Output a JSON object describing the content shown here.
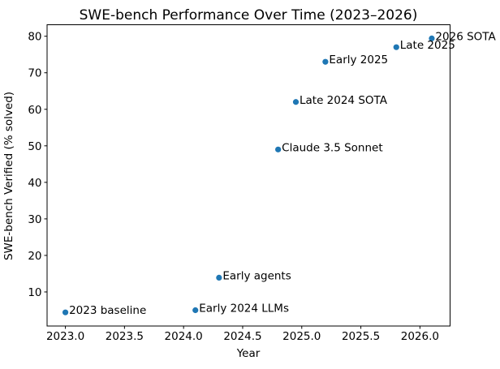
{
  "chart_data": {
    "type": "scatter",
    "title": "SWE-bench Performance Over Time (2023–2026)",
    "xlabel": "Year",
    "ylabel": "SWE-bench Verified (% solved)",
    "xlim": [
      2022.845,
      2026.255
    ],
    "ylim": [
      0.67,
      83.15
    ],
    "xticks": [
      2023.0,
      2023.5,
      2024.0,
      2024.5,
      2025.0,
      2025.5,
      2026.0
    ],
    "xtick_labels": [
      "2023.0",
      "2023.5",
      "2024.0",
      "2024.5",
      "2025.0",
      "2025.5",
      "2026.0"
    ],
    "yticks": [
      10,
      20,
      30,
      40,
      50,
      60,
      70,
      80
    ],
    "ytick_labels": [
      "10",
      "20",
      "30",
      "40",
      "50",
      "60",
      "70",
      "80"
    ],
    "grid": false,
    "legend": "none",
    "marker_color": "#1f77b4",
    "background_color": "#ffffff",
    "text_color": "#000000",
    "points": [
      {
        "x": 2023.0,
        "y": 4.4,
        "label": "2023 baseline"
      },
      {
        "x": 2024.1,
        "y": 5.0,
        "label": "Early 2024 LLMs"
      },
      {
        "x": 2024.3,
        "y": 13.9,
        "label": "Early agents"
      },
      {
        "x": 2024.8,
        "y": 49.0,
        "label": "Claude 3.5 Sonnet"
      },
      {
        "x": 2024.95,
        "y": 62.0,
        "label": "Late 2024 SOTA"
      },
      {
        "x": 2025.2,
        "y": 73.0,
        "label": "Early 2025"
      },
      {
        "x": 2025.8,
        "y": 77.0,
        "label": "Late 2025"
      },
      {
        "x": 2026.1,
        "y": 79.4,
        "label": "2026 SOTA"
      }
    ]
  }
}
